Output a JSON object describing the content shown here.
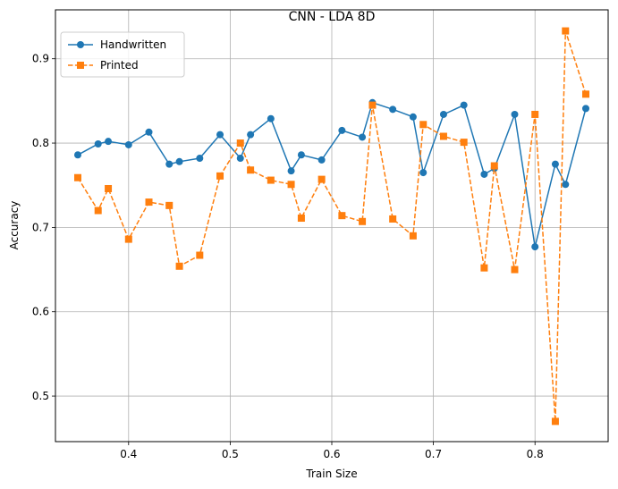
{
  "chart_data": {
    "type": "line",
    "title": "CNN - LDA 8D",
    "xlabel": "Train Size",
    "ylabel": "Accuracy",
    "xlim": [
      0.328,
      0.872
    ],
    "ylim": [
      0.446,
      0.958
    ],
    "xticks": [
      0.4,
      0.5,
      0.6,
      0.7,
      0.8
    ],
    "xtick_labels": [
      "0.4",
      "0.5",
      "0.6",
      "0.7",
      "0.8"
    ],
    "yticks": [
      0.5,
      0.6,
      0.7,
      0.8,
      0.9
    ],
    "ytick_labels": [
      "0.5",
      "0.6",
      "0.7",
      "0.8",
      "0.9"
    ],
    "grid": true,
    "legend_position": "upper-left",
    "x": [
      0.35,
      0.37,
      0.38,
      0.4,
      0.42,
      0.44,
      0.45,
      0.47,
      0.49,
      0.51,
      0.52,
      0.54,
      0.56,
      0.57,
      0.59,
      0.61,
      0.63,
      0.64,
      0.66,
      0.68,
      0.69,
      0.71,
      0.73,
      0.75,
      0.76,
      0.78,
      0.8,
      0.82,
      0.83,
      0.85
    ],
    "series": [
      {
        "name": "Handwritten",
        "color": "#1f77b4",
        "linestyle": "solid",
        "marker": "circle",
        "values": [
          0.786,
          0.799,
          0.802,
          0.798,
          0.813,
          0.775,
          0.778,
          0.782,
          0.81,
          0.782,
          0.81,
          0.829,
          0.767,
          0.786,
          0.78,
          0.815,
          0.807,
          0.848,
          0.84,
          0.831,
          0.765,
          0.834,
          0.845,
          0.763,
          0.77,
          0.834,
          0.677,
          0.775,
          0.751,
          0.841
        ]
      },
      {
        "name": "Printed",
        "color": "#ff7f0e",
        "linestyle": "dashed",
        "marker": "square",
        "values": [
          0.759,
          0.72,
          0.746,
          0.686,
          0.73,
          0.726,
          0.654,
          0.667,
          0.761,
          0.8,
          0.768,
          0.756,
          0.751,
          0.711,
          0.757,
          0.714,
          0.707,
          0.845,
          0.71,
          0.69,
          0.822,
          0.808,
          0.801,
          0.652,
          0.773,
          0.65,
          0.834,
          0.47,
          0.933,
          0.858
        ]
      }
    ]
  }
}
